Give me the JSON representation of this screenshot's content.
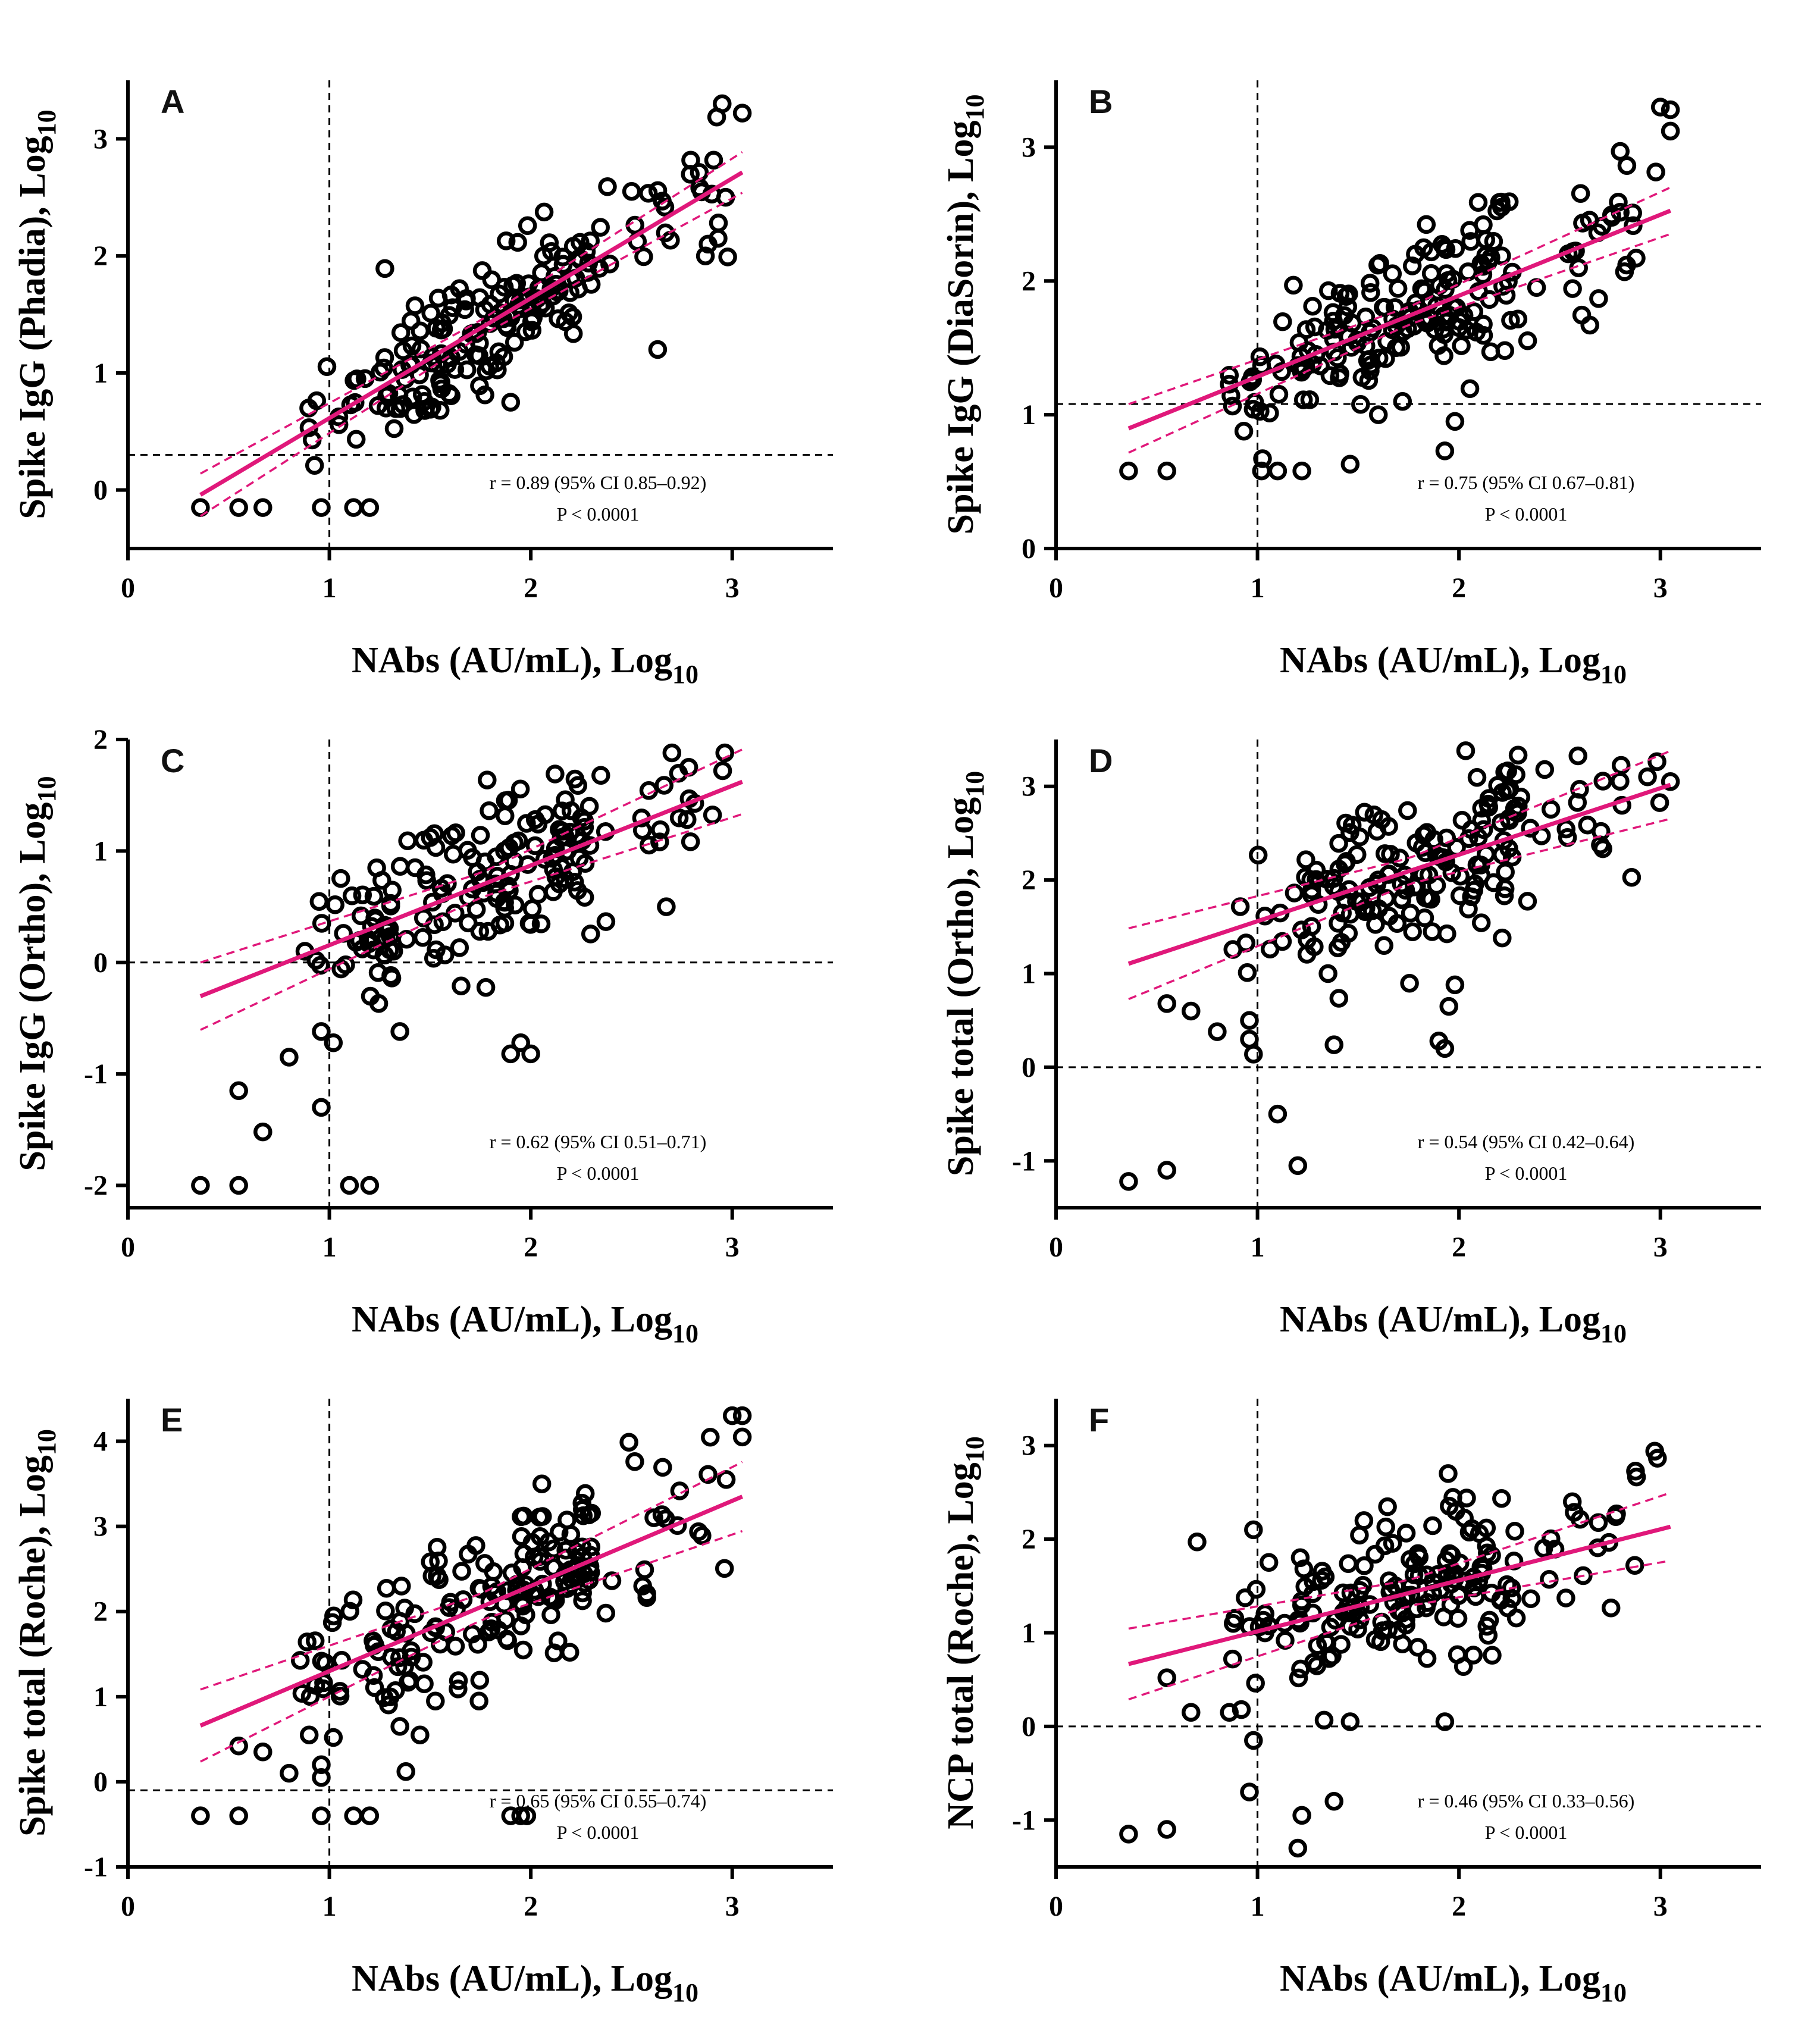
{
  "figure_title": "",
  "chart_data": [
    {
      "type": "scatter",
      "panel": "A",
      "xlabel": "NAbs (AU/mL), Log",
      "xlabel_sub": "10",
      "ylabel": "Spike IgG (Phadia), Log",
      "ylabel_sub": "10",
      "xlim": [
        0,
        3.5
      ],
      "ylim": [
        -0.5,
        3.5
      ],
      "xticks": [
        0,
        1,
        2,
        3
      ],
      "yticks": [
        0,
        1,
        2,
        3
      ],
      "ref_x": 1,
      "ref_y": 0.3,
      "fit": {
        "slope": 1.024,
        "intercept": -0.41,
        "ci": 0.12
      },
      "stat_r": "r = 0.89 (95% CI 0.85–0.92)",
      "stat_p": "P < 0.0001",
      "seed": 11,
      "n": 190,
      "noise": 0.28,
      "points": [
        [
          0.36,
          -0.15
        ],
        [
          0.55,
          -0.15
        ],
        [
          0.67,
          -0.15
        ],
        [
          0.96,
          -0.15
        ],
        [
          1.12,
          -0.15
        ],
        [
          1.2,
          -0.15
        ],
        [
          2.63,
          1.2
        ],
        [
          2.95,
          3.3
        ],
        [
          3.05,
          3.22
        ],
        [
          2.88,
          2.1
        ],
        [
          2.93,
          2.15
        ],
        [
          1.9,
          0.75
        ],
        [
          1.55,
          0.68
        ]
      ]
    },
    {
      "type": "scatter",
      "panel": "B",
      "xlabel": "NAbs (AU/mL), Log",
      "xlabel_sub": "10",
      "ylabel": "Spike IgG (DiaSorin), Log",
      "ylabel_sub": "10",
      "xlim": [
        0,
        3.5
      ],
      "ylim": [
        0,
        3.5
      ],
      "xticks": [
        0,
        1,
        2,
        3
      ],
      "yticks": [
        0,
        1,
        2,
        3
      ],
      "ref_x": 1,
      "ref_y": 1.08,
      "fit": {
        "slope": 0.605,
        "intercept": 0.68,
        "ci": 0.12
      },
      "stat_r": "r = 0.75 (95% CI 0.67–0.81)",
      "stat_p": "P < 0.0001",
      "seed": 23,
      "n": 190,
      "noise": 0.25,
      "points": [
        [
          0.36,
          0.58
        ],
        [
          0.55,
          0.58
        ],
        [
          1.02,
          0.58
        ],
        [
          1.1,
          0.58
        ],
        [
          1.22,
          0.58
        ],
        [
          1.46,
          0.63
        ],
        [
          1.93,
          0.73
        ],
        [
          1.98,
          0.95
        ],
        [
          3.0,
          3.3
        ],
        [
          3.05,
          3.28
        ],
        [
          3.05,
          3.12
        ],
        [
          2.65,
          1.67
        ],
        [
          1.6,
          1.0
        ],
        [
          1.72,
          1.1
        ]
      ]
    },
    {
      "type": "scatter",
      "panel": "C",
      "xlabel": "NAbs (AU/mL), Log",
      "xlabel_sub": "10",
      "ylabel": "Spike IgG (Ortho), Log",
      "ylabel_sub": "10",
      "xlim": [
        0,
        3.5
      ],
      "ylim": [
        -2.2,
        2.0
      ],
      "xticks": [
        0,
        1,
        2,
        3
      ],
      "yticks": [
        -2,
        -1,
        0,
        1,
        2
      ],
      "ref_x": 1,
      "ref_y": 0,
      "fit": {
        "slope": 0.715,
        "intercept": -0.56,
        "ci": 0.2
      },
      "stat_r": "r = 0.62 (95% CI 0.51–0.71)",
      "stat_p": "P < 0.0001",
      "seed": 37,
      "n": 180,
      "noise": 0.35,
      "points": [
        [
          0.36,
          -2.0
        ],
        [
          0.55,
          -2.0
        ],
        [
          1.1,
          -2.0
        ],
        [
          1.2,
          -2.0
        ],
        [
          0.55,
          -1.15
        ],
        [
          0.67,
          -1.52
        ],
        [
          0.96,
          -1.3
        ],
        [
          0.8,
          -0.85
        ],
        [
          1.35,
          -0.62
        ],
        [
          1.9,
          -0.82
        ],
        [
          1.95,
          -0.72
        ],
        [
          2.0,
          -0.82
        ],
        [
          0.96,
          -0.62
        ],
        [
          1.02,
          -0.72
        ],
        [
          1.87,
          0.54
        ]
      ]
    },
    {
      "type": "scatter",
      "panel": "D",
      "xlabel": "NAbs (AU/mL), Log",
      "xlabel_sub": "10",
      "ylabel": "Spike total (Ortho), Log",
      "ylabel_sub": "10",
      "xlim": [
        0,
        3.5
      ],
      "ylim": [
        -1.5,
        3.5
      ],
      "xticks": [
        0,
        1,
        2,
        3
      ],
      "yticks": [
        -1,
        0,
        1,
        2,
        3
      ],
      "ref_x": 1,
      "ref_y": 0,
      "fit": {
        "slope": 0.71,
        "intercept": 0.85,
        "ci": 0.25
      },
      "stat_r": "r = 0.54 (95% CI 0.42–0.64)",
      "stat_p": "P < 0.0001",
      "seed": 51,
      "n": 175,
      "noise": 0.42,
      "points": [
        [
          0.36,
          -1.22
        ],
        [
          0.55,
          -1.1
        ],
        [
          1.1,
          -0.5
        ],
        [
          1.2,
          -1.05
        ],
        [
          0.55,
          0.68
        ],
        [
          0.67,
          0.6
        ],
        [
          0.8,
          0.38
        ],
        [
          0.96,
          0.5
        ],
        [
          0.96,
          0.3
        ],
        [
          0.98,
          0.14
        ],
        [
          1.38,
          0.24
        ],
        [
          1.9,
          0.28
        ],
        [
          1.93,
          0.2
        ],
        [
          1.95,
          0.65
        ],
        [
          1.98,
          0.88
        ],
        [
          1.35,
          1.0
        ],
        [
          3.05,
          3.05
        ]
      ]
    },
    {
      "type": "scatter",
      "panel": "E",
      "xlabel": "NAbs (AU/mL), Log",
      "xlabel_sub": "10",
      "ylabel": "Spike total (Roche), Log",
      "ylabel_sub": "10",
      "xlim": [
        0,
        3.5
      ],
      "ylim": [
        -1.0,
        4.5
      ],
      "xticks": [
        0,
        1,
        2,
        3
      ],
      "yticks": [
        -1,
        0,
        1,
        2,
        3,
        4
      ],
      "ref_x": 1,
      "ref_y": -0.1,
      "fit": {
        "slope": 1.0,
        "intercept": 0.3,
        "ci": 0.28
      },
      "stat_r": "r = 0.65 (95% CI 0.55–0.74)",
      "stat_p": "P < 0.0001",
      "seed": 67,
      "n": 180,
      "noise": 0.45,
      "points": [
        [
          0.36,
          -0.4
        ],
        [
          0.55,
          -0.4
        ],
        [
          0.96,
          -0.4
        ],
        [
          1.12,
          -0.4
        ],
        [
          1.2,
          -0.4
        ],
        [
          1.9,
          -0.4
        ],
        [
          1.95,
          -0.4
        ],
        [
          1.98,
          -0.4
        ],
        [
          0.55,
          0.42
        ],
        [
          0.67,
          0.35
        ],
        [
          0.8,
          0.1
        ],
        [
          0.9,
          0.55
        ],
        [
          0.96,
          0.2
        ],
        [
          0.96,
          0.05
        ],
        [
          1.02,
          0.52
        ],
        [
          1.35,
          0.65
        ],
        [
          1.38,
          0.12
        ],
        [
          1.45,
          0.55
        ],
        [
          3.0,
          4.3
        ],
        [
          3.05,
          4.3
        ],
        [
          3.05,
          4.05
        ],
        [
          2.97,
          3.55
        ]
      ]
    },
    {
      "type": "scatter",
      "panel": "F",
      "xlabel": "NAbs (AU/mL), Log",
      "xlabel_sub": "10",
      "ylabel": "NCP total (Roche), Log",
      "ylabel_sub": "10",
      "xlim": [
        0,
        3.5
      ],
      "ylim": [
        -1.5,
        3.5
      ],
      "xticks": [
        0,
        1,
        2,
        3
      ],
      "yticks": [
        -1,
        0,
        1,
        2,
        3
      ],
      "ref_x": 1,
      "ref_y": 0,
      "fit": {
        "slope": 0.545,
        "intercept": 0.47,
        "ci": 0.25
      },
      "stat_r": "r = 0.46 (95% CI 0.33–0.56)",
      "stat_p": "P < 0.0001",
      "seed": 83,
      "n": 175,
      "noise": 0.45,
      "points": [
        [
          0.36,
          -1.15
        ],
        [
          0.55,
          -1.1
        ],
        [
          0.96,
          -0.7
        ],
        [
          0.98,
          -0.15
        ],
        [
          1.22,
          -0.95
        ],
        [
          1.2,
          -1.3
        ],
        [
          1.38,
          -0.8
        ],
        [
          1.46,
          0.05
        ],
        [
          1.93,
          0.05
        ],
        [
          0.67,
          0.15
        ],
        [
          0.86,
          0.15
        ],
        [
          0.92,
          0.18
        ],
        [
          0.55,
          0.52
        ],
        [
          0.7,
          1.97
        ],
        [
          0.98,
          2.1
        ]
      ]
    }
  ]
}
